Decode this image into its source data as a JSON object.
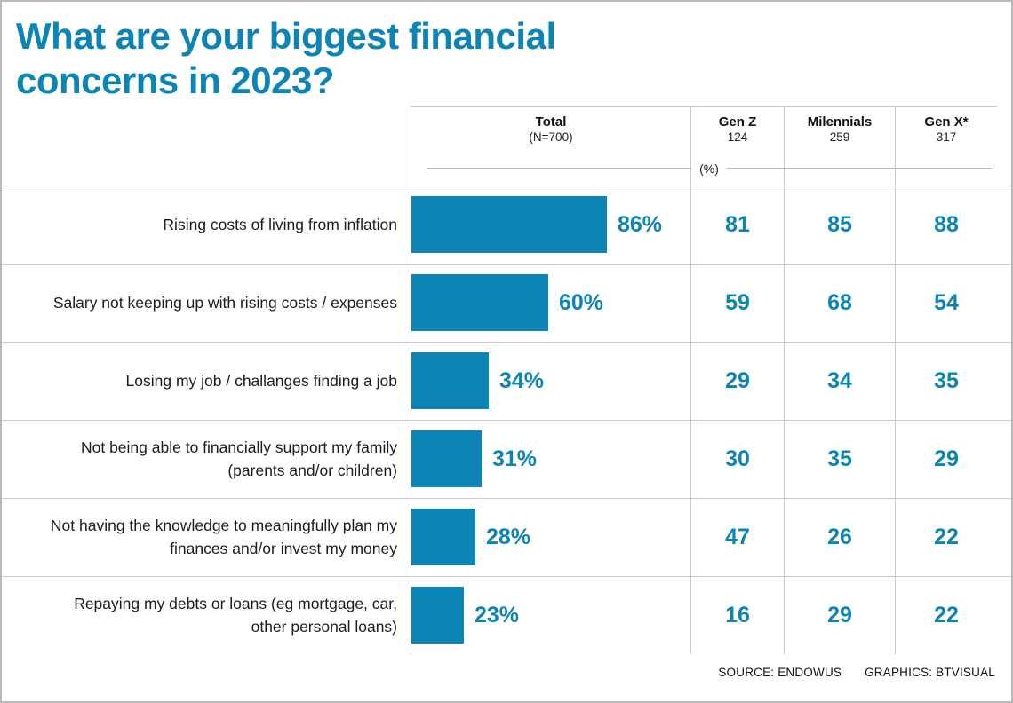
{
  "title": "What are your biggest financial concerns in 2023?",
  "header": {
    "columns": [
      {
        "label": "Total",
        "sub": "(N=700)"
      },
      {
        "label": "Gen Z",
        "sub": "124"
      },
      {
        "label": "Milennials",
        "sub": "259"
      },
      {
        "label": "Gen X*",
        "sub": "317"
      }
    ],
    "unit_label": "(%)"
  },
  "rows": [
    {
      "label": "Rising costs of living from inflation",
      "total": 86,
      "total_label": "86%",
      "genz": "81",
      "millennials": "85",
      "genx": "88"
    },
    {
      "label": "Salary not keeping up with rising costs / expenses",
      "total": 60,
      "total_label": "60%",
      "genz": "59",
      "millennials": "68",
      "genx": "54"
    },
    {
      "label": "Losing my job / challanges finding a job",
      "total": 34,
      "total_label": "34%",
      "genz": "29",
      "millennials": "34",
      "genx": "35"
    },
    {
      "label": "Not being able to financially support my family (parents and/or children)",
      "total": 31,
      "total_label": "31%",
      "genz": "30",
      "millennials": "35",
      "genx": "29"
    },
    {
      "label": "Not having the knowledge to meaningfully plan my finances and/or invest my money",
      "total": 28,
      "total_label": "28%",
      "genz": "47",
      "millennials": "26",
      "genx": "22"
    },
    {
      "label": "Repaying my debts or loans (eg mortgage, car, other personal loans)",
      "total": 23,
      "total_label": "23%",
      "genz": "16",
      "millennials": "29",
      "genx": "22"
    }
  ],
  "footer": {
    "source": "SOURCE: ENDOWUS",
    "graphics": "GRAPHICS: BTVISUAL"
  },
  "colors": {
    "accent": "#0c85b6",
    "grid": "#c9c9c9"
  },
  "chart_data": {
    "type": "bar",
    "orientation": "horizontal",
    "title": "What are your biggest financial concerns in 2023?",
    "unit": "%",
    "xlim": [
      0,
      100
    ],
    "bar_color": "#0c85b6",
    "categories": [
      "Rising costs of living from inflation",
      "Salary not keeping up with rising costs / expenses",
      "Losing my job / challanges finding a job",
      "Not being able to financially support my family (parents and/or children)",
      "Not having the knowledge to meaningfully plan my finances and/or invest my money",
      "Repaying my debts or loans (eg mortgage, car, other personal loans)"
    ],
    "series": [
      {
        "name": "Total (N=700)",
        "values": [
          86,
          60,
          34,
          31,
          28,
          23
        ]
      },
      {
        "name": "Gen Z (124)",
        "values": [
          81,
          59,
          29,
          30,
          47,
          16
        ]
      },
      {
        "name": "Milennials (259)",
        "values": [
          85,
          68,
          34,
          35,
          26,
          29
        ]
      },
      {
        "name": "Gen X* (317)",
        "values": [
          88,
          54,
          35,
          29,
          22,
          22
        ]
      }
    ],
    "notes": "Only the Total series is drawn as bars; other series shown as numeric table columns",
    "source": "SOURCE: ENDOWUS",
    "graphics": "GRAPHICS: BTVISUAL"
  }
}
